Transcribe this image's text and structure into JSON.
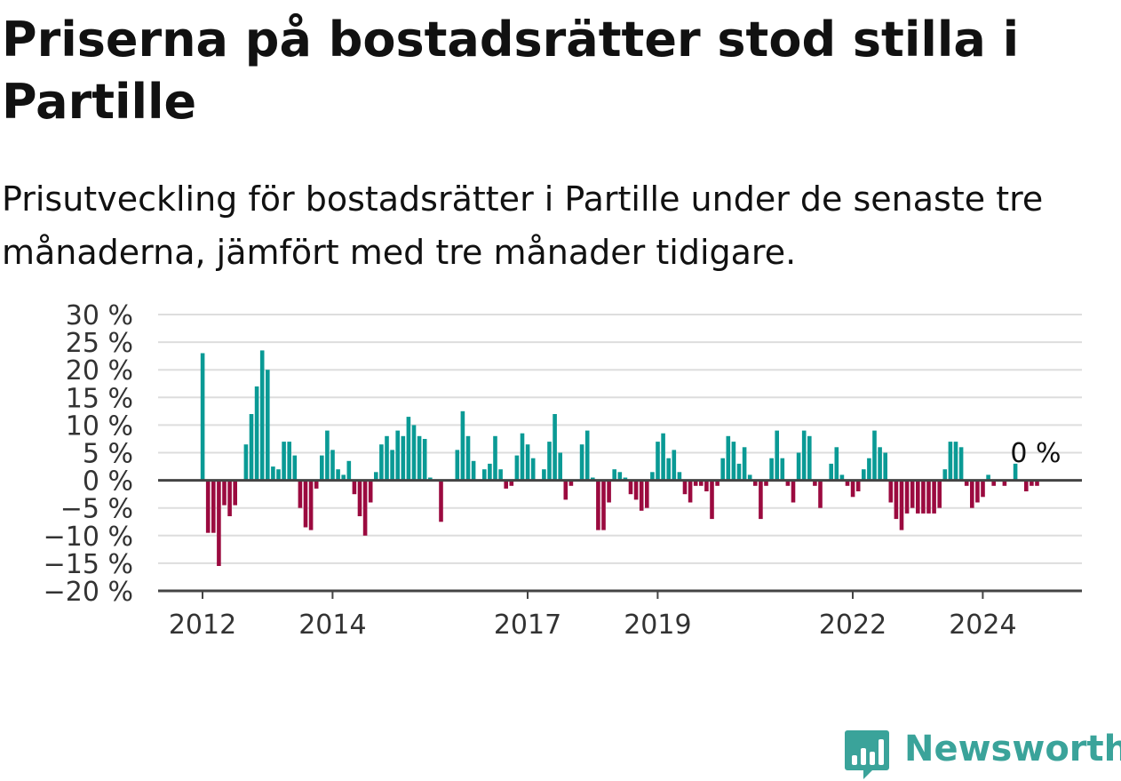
{
  "title": "Priserna på bostadsrätter stod stilla i Partille",
  "subtitle": "Prisutveckling för bostadsrätter i Partille under de senaste tre månaderna, jämfört med tre månader tidigare.",
  "brand": {
    "name": "Newsworthy",
    "color": "#3aa39a",
    "icon": "bar-chart-speech-bubble-icon"
  },
  "colors": {
    "positive": "#0a9a95",
    "negative": "#9b0a3f",
    "grid": "#dddddd",
    "axis": "#444444",
    "text": "#333333"
  },
  "chart_data": {
    "type": "bar",
    "title": "Priserna på bostadsrätter stod stilla i Partille",
    "xlabel": "",
    "ylabel": "",
    "ylim": [
      -20,
      30
    ],
    "yticks": [
      30,
      25,
      20,
      15,
      10,
      5,
      0,
      -5,
      -10,
      -15,
      -20
    ],
    "ytick_labels": [
      "30 %",
      "25 %",
      "20 %",
      "15 %",
      "10 %",
      "5 %",
      "0 %",
      "−5 %",
      "−10 %",
      "−15 %",
      "−20 %"
    ],
    "xtick_labels": [
      "2012",
      "2014",
      "2017",
      "2019",
      "2022",
      "2024"
    ],
    "xtick_month_index": [
      0,
      24,
      60,
      84,
      120,
      144
    ],
    "start": "2012-01",
    "end": "2025-03",
    "grid": true,
    "last_value_label": "0 %",
    "values": [
      23,
      -9.5,
      -9.5,
      -15.5,
      -4.5,
      -6.5,
      -4.5,
      0,
      6.5,
      12,
      17,
      23.5,
      20,
      2.5,
      2,
      7,
      7,
      4.5,
      -5,
      -8.5,
      -9,
      -1.5,
      4.5,
      9,
      5.5,
      2,
      1,
      3.5,
      -2.5,
      -6.5,
      -10,
      -4,
      1.5,
      6.5,
      8,
      5.5,
      9,
      8,
      11.5,
      10,
      8,
      7.5,
      0.5,
      0,
      -7.5,
      0,
      0,
      5.5,
      12.5,
      8,
      3.5,
      0,
      2,
      3,
      8,
      2,
      -1.5,
      -1,
      4.5,
      8.5,
      6.5,
      4,
      0,
      2,
      7,
      12,
      5,
      -3.5,
      -1,
      0,
      6.5,
      9,
      0.5,
      -9,
      -9,
      -4,
      2,
      1.5,
      0.5,
      -2.5,
      -3.5,
      -5.5,
      -5,
      1.5,
      7,
      8.5,
      4,
      5.5,
      1.5,
      -2.5,
      -4,
      -1,
      -1,
      -2,
      -7,
      -1,
      4,
      8,
      7,
      3,
      6,
      1,
      -1,
      -7,
      -1,
      4,
      9,
      4,
      -1,
      -4,
      5,
      9,
      8,
      -1,
      -5,
      0,
      3,
      6,
      1,
      -1,
      -3,
      -2,
      2,
      4,
      9,
      6,
      5,
      -4,
      -7,
      -9,
      -6,
      -5,
      -6,
      -6,
      -6,
      -6,
      -5,
      2,
      7,
      7,
      6,
      -1,
      -5,
      -4,
      -3,
      1,
      -1,
      0,
      -1,
      0,
      3,
      0,
      -2,
      -1,
      -1,
      0
    ]
  }
}
